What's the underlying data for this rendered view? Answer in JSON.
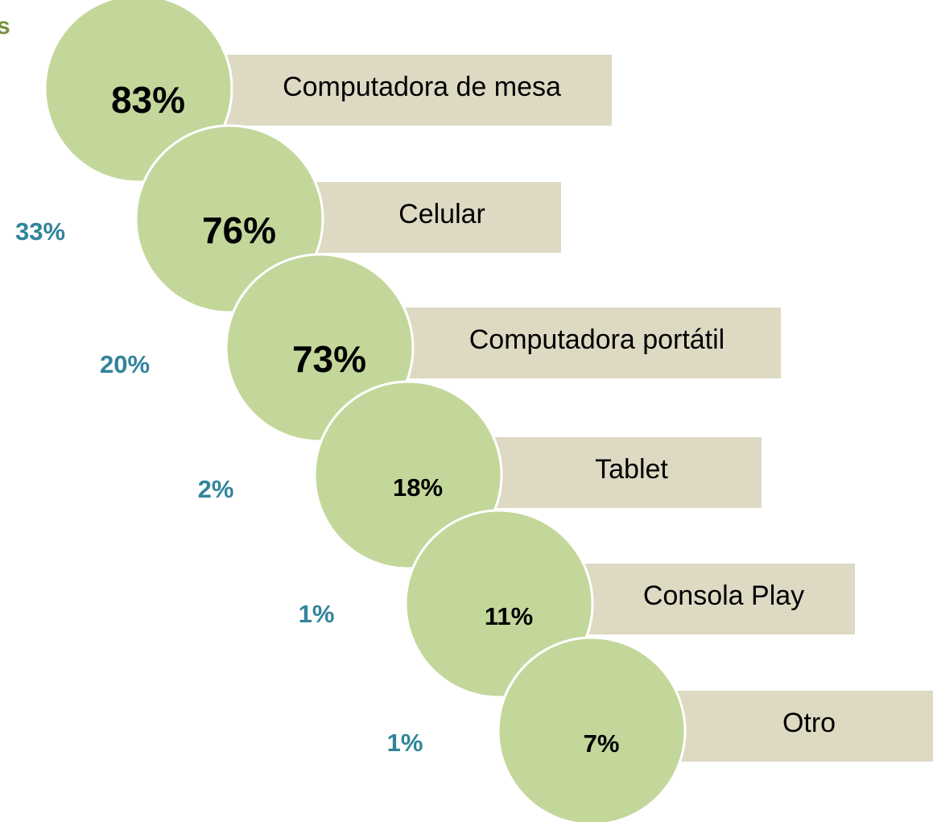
{
  "heading": "s",
  "items": [
    {
      "value": "83%",
      "label": "Computadora de mesa"
    },
    {
      "value": "76%",
      "label": "Celular",
      "side": "33%"
    },
    {
      "value": "73%",
      "label": "Computadora portátil",
      "side": "20%"
    },
    {
      "value": "18%",
      "label": "Tablet",
      "side": "2%"
    },
    {
      "value": "11%",
      "label": "Consola Play",
      "side": "1%"
    },
    {
      "value": "7%",
      "label": "Otro",
      "side": "1%"
    }
  ]
}
